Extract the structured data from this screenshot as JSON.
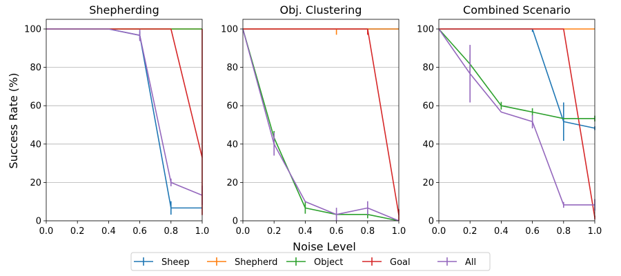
{
  "figure": {
    "xlabel": "Noise Level",
    "ylabel": "Success Rate (%)"
  },
  "legend": {
    "placement": "bottom-center",
    "entries": [
      {
        "name": "Sheep",
        "color": "#1f77b4"
      },
      {
        "name": "Shepherd",
        "color": "#ff7f0e"
      },
      {
        "name": "Object",
        "color": "#2ca02c"
      },
      {
        "name": "Goal",
        "color": "#d62728"
      },
      {
        "name": "All",
        "color": "#9467bd"
      }
    ]
  },
  "chart_data": [
    {
      "type": "line",
      "title": "Shepherding",
      "xlim": [
        0,
        1
      ],
      "ylim": [
        0,
        100
      ],
      "xticks": [
        "0.0",
        "0.2",
        "0.4",
        "0.6",
        "0.8",
        "1.0"
      ],
      "yticks": [
        "0",
        "20",
        "40",
        "60",
        "80",
        "100"
      ],
      "grid": "y",
      "series": [
        {
          "name": "Sheep",
          "color": "#1f77b4",
          "x": [
            0,
            0.2,
            0.4,
            0.6,
            0.8,
            1.0
          ],
          "y": [
            100,
            100,
            100,
            96.7,
            6.7,
            6.7
          ],
          "err": [
            0,
            0,
            0,
            2,
            3.5,
            0
          ]
        },
        {
          "name": "Shepherd",
          "color": "#ff7f0e",
          "x": [
            0,
            0.2,
            0.4,
            0.6,
            0.8,
            1.0
          ],
          "y": [
            100,
            100,
            100,
            100,
            100,
            100
          ],
          "err": [
            0,
            0,
            0,
            0,
            0,
            0
          ]
        },
        {
          "name": "Object",
          "color": "#2ca02c",
          "x": [
            0,
            0.2,
            0.4,
            0.6,
            0.8,
            1.0
          ],
          "y": [
            100,
            100,
            100,
            100,
            100,
            100
          ],
          "err": [
            0,
            0,
            0,
            0,
            0,
            0
          ]
        },
        {
          "name": "Goal",
          "color": "#d62728",
          "x": [
            0,
            0.2,
            0.4,
            0.6,
            0.8,
            1.0
          ],
          "y": [
            100,
            100,
            100,
            100,
            100,
            33
          ],
          "err": [
            0,
            0,
            0,
            0,
            0,
            0
          ]
        },
        {
          "name": "All",
          "color": "#9467bd",
          "x": [
            0,
            0.2,
            0.4,
            0.6,
            0.8,
            1.0
          ],
          "y": [
            100,
            100,
            100,
            96.7,
            20,
            13.3
          ],
          "err": [
            0,
            0,
            0,
            3,
            2,
            5
          ]
        }
      ],
      "segments": [
        {
          "color": "#d62728",
          "x": 1.0,
          "y1": 3,
          "y2": 100
        }
      ]
    },
    {
      "type": "line",
      "title": "Obj. Clustering",
      "xlim": [
        0,
        1
      ],
      "ylim": [
        0,
        100
      ],
      "xticks": [
        "0.0",
        "0.2",
        "0.4",
        "0.6",
        "0.8",
        "1.0"
      ],
      "yticks": [
        "0",
        "20",
        "40",
        "60",
        "80",
        "100"
      ],
      "grid": "y",
      "series": [
        {
          "name": "Sheep",
          "color": "#1f77b4",
          "x": [
            0,
            0.2,
            0.4,
            0.6,
            0.8,
            1.0
          ],
          "y": [
            100,
            100,
            100,
            100,
            100,
            100
          ],
          "err": [
            0,
            0,
            0,
            0,
            0,
            0
          ]
        },
        {
          "name": "Shepherd",
          "color": "#ff7f0e",
          "x": [
            0,
            0.2,
            0.4,
            0.6,
            0.8,
            1.0
          ],
          "y": [
            100,
            100,
            100,
            100,
            100,
            100
          ],
          "err": [
            0,
            0,
            0,
            3,
            0,
            0
          ]
        },
        {
          "name": "Goal",
          "color": "#d62728",
          "x": [
            0,
            0.2,
            0.4,
            0.6,
            0.8,
            1.0
          ],
          "y": [
            100,
            100,
            100,
            100,
            100,
            3
          ],
          "err": [
            0,
            0,
            0,
            0,
            3,
            3
          ]
        },
        {
          "name": "Object",
          "color": "#2ca02c",
          "x": [
            0,
            0.2,
            0.4,
            0.6,
            0.8,
            1.0
          ],
          "y": [
            100,
            43.3,
            6.7,
            3.3,
            3.3,
            0
          ],
          "err": [
            0,
            3.5,
            3,
            0,
            2,
            0
          ]
        },
        {
          "name": "All",
          "color": "#9467bd",
          "x": [
            0,
            0.2,
            0.4,
            0.6,
            0.8,
            1.0
          ],
          "y": [
            100,
            40,
            10,
            3.3,
            6.7,
            0
          ],
          "err": [
            0,
            6,
            0,
            3.5,
            3.5,
            0
          ]
        }
      ],
      "segments": []
    },
    {
      "type": "line",
      "title": "Combined Scenario",
      "xlim": [
        0,
        1
      ],
      "ylim": [
        0,
        100
      ],
      "xticks": [
        "0.0",
        "0.2",
        "0.4",
        "0.6",
        "0.8",
        "1.0"
      ],
      "yticks": [
        "0",
        "20",
        "40",
        "60",
        "80",
        "100"
      ],
      "grid": "y",
      "series": [
        {
          "name": "Shepherd",
          "color": "#ff7f0e",
          "x": [
            0,
            0.2,
            0.4,
            0.6,
            0.8,
            1.0
          ],
          "y": [
            100,
            100,
            100,
            100,
            100,
            100
          ],
          "err": [
            0,
            0,
            0,
            0,
            0,
            0
          ]
        },
        {
          "name": "Sheep",
          "color": "#1f77b4",
          "x": [
            0,
            0.2,
            0.4,
            0.6,
            0.8,
            1.0
          ],
          "y": [
            100,
            100,
            100,
            100,
            51.7,
            48.3
          ],
          "err": [
            0,
            0,
            0,
            1.5,
            10,
            1
          ]
        },
        {
          "name": "Goal",
          "color": "#d62728",
          "x": [
            0,
            0.2,
            0.4,
            0.6,
            0.8,
            1.0
          ],
          "y": [
            100,
            100,
            100,
            100,
            100,
            1.7
          ],
          "err": [
            0,
            0,
            0,
            0,
            0,
            1
          ]
        },
        {
          "name": "Object",
          "color": "#2ca02c",
          "x": [
            0,
            0.2,
            0.4,
            0.6,
            0.8,
            1.0
          ],
          "y": [
            100,
            81.7,
            60,
            56.7,
            53.3,
            53.3
          ],
          "err": [
            0,
            5,
            2,
            2,
            0,
            1.5
          ]
        },
        {
          "name": "All",
          "color": "#9467bd",
          "x": [
            0,
            0.2,
            0.4,
            0.6,
            0.8,
            1.0
          ],
          "y": [
            100,
            76.7,
            56.7,
            51.7,
            8.3,
            8.3
          ],
          "err": [
            0,
            15,
            0,
            3.5,
            1.5,
            3
          ]
        }
      ],
      "segments": []
    }
  ]
}
